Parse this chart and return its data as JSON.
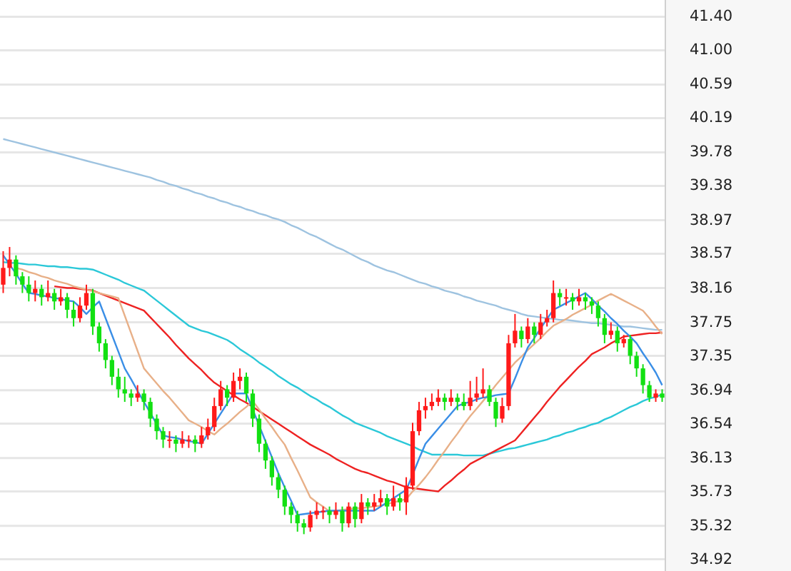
{
  "chart_data": {
    "type": "candlestick",
    "grid": "y",
    "tick_labels": "y",
    "ylim": [
      34.78,
      41.6
    ],
    "yticks": [
      {
        "value": 41.4,
        "label": "41.40"
      },
      {
        "value": 41.0,
        "label": "41.00"
      },
      {
        "value": 40.59,
        "label": "40.59"
      },
      {
        "value": 40.19,
        "label": "40.19"
      },
      {
        "value": 39.78,
        "label": "39.78"
      },
      {
        "value": 39.38,
        "label": "39.38"
      },
      {
        "value": 38.97,
        "label": "38.97"
      },
      {
        "value": 38.57,
        "label": "38.57"
      },
      {
        "value": 38.16,
        "label": "38.16"
      },
      {
        "value": 37.75,
        "label": "37.75"
      },
      {
        "value": 37.35,
        "label": "37.35"
      },
      {
        "value": 36.94,
        "label": "36.94"
      },
      {
        "value": 36.54,
        "label": "36.54"
      },
      {
        "value": 36.13,
        "label": "36.13"
      },
      {
        "value": 35.73,
        "label": "35.73"
      },
      {
        "value": 35.32,
        "label": "35.32"
      },
      {
        "value": 34.92,
        "label": "34.92"
      }
    ],
    "categories": [
      null,
      null,
      null,
      null,
      null,
      null,
      null,
      null,
      null,
      null,
      null,
      null,
      null,
      null,
      null,
      null,
      null,
      null,
      null,
      null,
      null,
      null,
      null,
      null,
      null,
      null,
      null,
      null,
      null,
      null,
      null,
      null,
      null,
      null,
      null,
      null,
      null,
      null,
      null,
      null,
      null,
      null,
      null,
      null,
      null,
      null,
      null,
      null,
      null,
      null,
      null,
      null,
      null,
      null,
      null,
      null,
      null,
      null,
      null,
      null,
      null,
      null,
      null,
      null,
      null,
      null,
      null,
      null,
      null,
      null,
      null,
      null,
      null,
      null,
      null,
      null,
      null,
      null,
      null,
      null,
      null,
      null,
      null,
      null,
      null,
      null,
      null,
      null,
      null,
      null,
      null,
      null,
      null,
      null,
      null,
      null,
      null,
      null,
      null,
      null,
      null,
      null,
      null,
      null
    ],
    "ohlc": [
      [
        38.2,
        38.6,
        38.1,
        38.4
      ],
      [
        38.4,
        38.65,
        38.3,
        38.5
      ],
      [
        38.5,
        38.55,
        38.2,
        38.3
      ],
      [
        38.3,
        38.35,
        38.1,
        38.2
      ],
      [
        38.2,
        38.3,
        38.0,
        38.1
      ],
      [
        38.1,
        38.25,
        38.0,
        38.15
      ],
      [
        38.15,
        38.2,
        37.95,
        38.05
      ],
      [
        38.05,
        38.25,
        38.0,
        38.1
      ],
      [
        38.1,
        38.15,
        37.9,
        38.0
      ],
      [
        38.0,
        38.15,
        37.95,
        38.05
      ],
      [
        38.05,
        38.1,
        37.8,
        37.9
      ],
      [
        37.9,
        38.0,
        37.7,
        37.8
      ],
      [
        37.8,
        38.05,
        37.75,
        37.95
      ],
      [
        37.95,
        38.2,
        37.9,
        38.1
      ],
      [
        38.1,
        38.15,
        37.6,
        37.7
      ],
      [
        37.7,
        37.75,
        37.4,
        37.5
      ],
      [
        37.5,
        37.55,
        37.2,
        37.3
      ],
      [
        37.3,
        37.35,
        37.0,
        37.1
      ],
      [
        37.1,
        37.2,
        36.85,
        36.95
      ],
      [
        36.95,
        37.1,
        36.8,
        36.9
      ],
      [
        36.9,
        36.95,
        36.75,
        36.85
      ],
      [
        36.85,
        37.0,
        36.8,
        36.9
      ],
      [
        36.9,
        36.95,
        36.7,
        36.8
      ],
      [
        36.8,
        36.85,
        36.5,
        36.6
      ],
      [
        36.6,
        36.65,
        36.35,
        36.45
      ],
      [
        36.45,
        36.5,
        36.25,
        36.35
      ],
      [
        36.35,
        36.45,
        36.25,
        36.35
      ],
      [
        36.35,
        36.4,
        36.2,
        36.3
      ],
      [
        36.3,
        36.45,
        36.25,
        36.35
      ],
      [
        36.35,
        36.4,
        36.25,
        36.35
      ],
      [
        36.35,
        36.4,
        36.2,
        36.3
      ],
      [
        36.3,
        36.5,
        36.25,
        36.4
      ],
      [
        36.4,
        36.6,
        36.35,
        36.5
      ],
      [
        36.5,
        36.85,
        36.45,
        36.75
      ],
      [
        36.75,
        37.05,
        36.7,
        36.95
      ],
      [
        36.95,
        37.0,
        36.75,
        36.85
      ],
      [
        36.85,
        37.15,
        36.8,
        37.05
      ],
      [
        37.05,
        37.2,
        36.95,
        37.1
      ],
      [
        37.1,
        37.15,
        36.8,
        36.9
      ],
      [
        36.9,
        36.95,
        36.5,
        36.6
      ],
      [
        36.6,
        36.65,
        36.2,
        36.3
      ],
      [
        36.3,
        36.35,
        36.0,
        36.1
      ],
      [
        36.1,
        36.15,
        35.8,
        35.9
      ],
      [
        35.9,
        35.95,
        35.65,
        35.75
      ],
      [
        35.75,
        35.8,
        35.45,
        35.55
      ],
      [
        35.55,
        35.6,
        35.35,
        35.45
      ],
      [
        35.45,
        35.5,
        35.25,
        35.35
      ],
      [
        35.35,
        35.4,
        35.22,
        35.3
      ],
      [
        35.3,
        35.5,
        35.25,
        35.45
      ],
      [
        35.45,
        35.6,
        35.4,
        35.5
      ],
      [
        35.5,
        35.55,
        35.4,
        35.5
      ],
      [
        35.5,
        35.55,
        35.35,
        35.45
      ],
      [
        35.45,
        35.6,
        35.4,
        35.5
      ],
      [
        35.5,
        35.55,
        35.25,
        35.35
      ],
      [
        35.35,
        35.6,
        35.3,
        35.55
      ],
      [
        35.55,
        35.6,
        35.3,
        35.4
      ],
      [
        35.4,
        35.7,
        35.35,
        35.6
      ],
      [
        35.6,
        35.65,
        35.45,
        35.55
      ],
      [
        35.55,
        35.7,
        35.5,
        35.6
      ],
      [
        35.6,
        35.75,
        35.55,
        35.65
      ],
      [
        35.65,
        35.7,
        35.45,
        35.55
      ],
      [
        35.55,
        35.8,
        35.5,
        35.65
      ],
      [
        35.65,
        35.7,
        35.5,
        35.6
      ],
      [
        35.6,
        35.9,
        35.45,
        35.8
      ],
      [
        35.8,
        36.55,
        35.75,
        36.45
      ],
      [
        36.45,
        36.8,
        36.4,
        36.7
      ],
      [
        36.7,
        36.85,
        36.6,
        36.75
      ],
      [
        36.75,
        36.9,
        36.7,
        36.8
      ],
      [
        36.8,
        36.95,
        36.75,
        36.85
      ],
      [
        36.85,
        36.9,
        36.7,
        36.8
      ],
      [
        36.8,
        36.95,
        36.75,
        36.85
      ],
      [
        36.85,
        36.9,
        36.7,
        36.8
      ],
      [
        36.8,
        36.9,
        36.7,
        36.75
      ],
      [
        36.75,
        37.05,
        36.7,
        36.85
      ],
      [
        36.85,
        37.1,
        36.8,
        36.9
      ],
      [
        36.9,
        37.2,
        36.85,
        36.95
      ],
      [
        36.95,
        37.0,
        36.75,
        36.8
      ],
      [
        36.8,
        36.85,
        36.5,
        36.6
      ],
      [
        36.6,
        36.85,
        36.55,
        36.75
      ],
      [
        36.75,
        37.6,
        36.7,
        37.5
      ],
      [
        37.5,
        37.85,
        37.45,
        37.65
      ],
      [
        37.65,
        37.7,
        37.45,
        37.55
      ],
      [
        37.55,
        37.8,
        37.5,
        37.7
      ],
      [
        37.7,
        37.75,
        37.5,
        37.6
      ],
      [
        37.6,
        37.85,
        37.55,
        37.75
      ],
      [
        37.75,
        37.9,
        37.7,
        37.8
      ],
      [
        37.8,
        38.25,
        37.75,
        38.1
      ],
      [
        38.1,
        38.15,
        37.95,
        38.05
      ],
      [
        38.05,
        38.15,
        37.95,
        38.05
      ],
      [
        38.05,
        38.1,
        37.9,
        38.0
      ],
      [
        38.0,
        38.15,
        37.95,
        38.05
      ],
      [
        38.05,
        38.1,
        37.9,
        38.0
      ],
      [
        38.0,
        38.05,
        37.85,
        37.95
      ],
      [
        37.95,
        38.0,
        37.7,
        37.8
      ],
      [
        37.8,
        37.85,
        37.5,
        37.6
      ],
      [
        37.6,
        37.75,
        37.55,
        37.65
      ],
      [
        37.65,
        37.7,
        37.4,
        37.5
      ],
      [
        37.5,
        37.6,
        37.45,
        37.55
      ],
      [
        37.55,
        37.6,
        37.25,
        37.35
      ],
      [
        37.35,
        37.4,
        37.1,
        37.2
      ],
      [
        37.2,
        37.25,
        36.9,
        37.0
      ],
      [
        37.0,
        37.05,
        36.8,
        36.85
      ],
      [
        36.85,
        36.95,
        36.8,
        36.9
      ],
      [
        36.9,
        36.95,
        36.8,
        36.85
      ]
    ],
    "series": [
      {
        "type": "line",
        "color": "#9ec3e0",
        "values": [
          39.94,
          39.92,
          39.9,
          39.88,
          39.86,
          39.84,
          39.82,
          39.8,
          39.78,
          39.76,
          39.74,
          39.72,
          39.7,
          39.68,
          39.66,
          39.64,
          39.62,
          39.6,
          39.58,
          39.56,
          39.54,
          39.52,
          39.5,
          39.48,
          39.45,
          39.43,
          39.4,
          39.38,
          39.35,
          39.33,
          39.3,
          39.28,
          39.25,
          39.23,
          39.2,
          39.18,
          39.15,
          39.13,
          39.1,
          39.08,
          39.05,
          39.03,
          39.0,
          38.98,
          38.95,
          38.91,
          38.88,
          38.84,
          38.8,
          38.77,
          38.73,
          38.69,
          38.65,
          38.62,
          38.58,
          38.54,
          38.5,
          38.47,
          38.43,
          38.4,
          38.37,
          38.35,
          38.32,
          38.29,
          38.26,
          38.23,
          38.21,
          38.18,
          38.16,
          38.13,
          38.11,
          38.09,
          38.06,
          38.04,
          38.01,
          37.99,
          37.97,
          37.95,
          37.92,
          37.9,
          37.88,
          37.85,
          37.83,
          37.82,
          37.81,
          37.8,
          37.79,
          37.78,
          37.78,
          37.77,
          37.76,
          37.75,
          37.74,
          37.74,
          37.73,
          37.72,
          37.71,
          37.7,
          37.7,
          37.69,
          37.68,
          37.67,
          37.66,
          37.66
        ]
      },
      {
        "type": "line",
        "color": "#2bc8d8",
        "values": [
          38.47,
          38.46,
          38.46,
          38.45,
          38.44,
          38.44,
          38.43,
          38.42,
          38.42,
          38.41,
          38.41,
          38.4,
          38.39,
          38.39,
          38.38,
          38.35,
          38.32,
          38.29,
          38.26,
          38.22,
          38.19,
          38.16,
          38.13,
          38.07,
          38.01,
          37.95,
          37.89,
          37.83,
          37.77,
          37.71,
          37.68,
          37.65,
          37.63,
          37.6,
          37.57,
          37.54,
          37.49,
          37.43,
          37.38,
          37.33,
          37.27,
          37.22,
          37.17,
          37.11,
          37.06,
          37.01,
          36.97,
          36.92,
          36.87,
          36.83,
          36.78,
          36.74,
          36.69,
          36.64,
          36.6,
          36.55,
          36.52,
          36.49,
          36.46,
          36.43,
          36.39,
          36.36,
          36.33,
          36.3,
          36.27,
          36.23,
          36.2,
          36.17,
          36.17,
          36.17,
          36.17,
          36.17,
          36.16,
          36.16,
          36.16,
          36.16,
          36.18,
          36.2,
          36.22,
          36.24,
          36.25,
          36.27,
          36.29,
          36.31,
          36.33,
          36.35,
          36.38,
          36.4,
          36.43,
          36.45,
          36.48,
          36.5,
          36.53,
          36.55,
          36.59,
          36.62,
          36.66,
          36.7,
          36.74,
          36.77,
          36.81,
          36.84,
          36.86,
          36.89
        ]
      },
      {
        "type": "line",
        "color": "#ee2222",
        "values": [
          null,
          null,
          null,
          null,
          null,
          null,
          null,
          null,
          38.18,
          38.17,
          38.16,
          38.16,
          38.15,
          38.14,
          38.13,
          38.1,
          38.07,
          38.04,
          38.01,
          37.98,
          37.95,
          37.92,
          37.89,
          37.81,
          37.73,
          37.65,
          37.57,
          37.48,
          37.4,
          37.32,
          37.25,
          37.18,
          37.1,
          37.03,
          36.98,
          36.93,
          36.88,
          36.83,
          36.79,
          36.74,
          36.69,
          36.64,
          36.59,
          36.54,
          36.49,
          36.44,
          36.39,
          36.34,
          36.29,
          36.25,
          36.21,
          36.17,
          36.12,
          36.08,
          36.04,
          36.0,
          35.97,
          35.95,
          35.92,
          35.89,
          35.86,
          35.84,
          35.81,
          35.78,
          35.77,
          35.76,
          35.75,
          35.74,
          35.73,
          35.8,
          35.86,
          35.93,
          35.99,
          36.06,
          36.1,
          36.14,
          36.18,
          36.22,
          36.26,
          36.3,
          36.34,
          36.43,
          36.52,
          36.61,
          36.7,
          36.8,
          36.89,
          36.98,
          37.06,
          37.14,
          37.22,
          37.29,
          37.37,
          37.41,
          37.45,
          37.5,
          37.54,
          37.58,
          37.59,
          37.6,
          37.61,
          37.62,
          37.62,
          37.63
        ]
      },
      {
        "type": "line",
        "color": "#e8b088",
        "values": [
          null,
          null,
          38.4,
          38.38,
          38.35,
          38.33,
          38.3,
          38.28,
          38.25,
          38.23,
          38.21,
          38.18,
          38.16,
          38.14,
          38.12,
          38.1,
          38.08,
          38.06,
          38.04,
          37.83,
          37.62,
          37.41,
          37.2,
          37.11,
          37.02,
          36.93,
          36.85,
          36.76,
          36.67,
          36.58,
          36.54,
          36.5,
          36.45,
          36.41,
          36.48,
          36.54,
          36.61,
          36.68,
          36.74,
          36.81,
          36.71,
          36.6,
          36.5,
          36.39,
          36.29,
          36.13,
          35.98,
          35.82,
          35.66,
          35.6,
          35.55,
          35.49,
          35.5,
          35.51,
          35.52,
          35.53,
          35.53,
          35.54,
          35.55,
          35.56,
          35.58,
          35.6,
          35.62,
          35.64,
          35.73,
          35.81,
          35.9,
          36.0,
          36.11,
          36.21,
          36.32,
          36.42,
          36.53,
          36.63,
          36.72,
          36.81,
          36.9,
          37.0,
          37.09,
          37.18,
          37.27,
          37.34,
          37.42,
          37.49,
          37.56,
          37.64,
          37.71,
          37.75,
          37.79,
          37.84,
          37.88,
          37.92,
          37.96,
          38.01,
          38.05,
          38.09,
          38.05,
          38.01,
          37.97,
          37.93,
          37.89,
          37.8,
          37.7,
          37.61
        ]
      },
      {
        "type": "line",
        "color": "#3a8ee6",
        "values": [
          38.55,
          38.44,
          38.33,
          38.21,
          38.1,
          38.09,
          38.07,
          38.06,
          38.04,
          38.03,
          38.01,
          38.0,
          37.93,
          37.85,
          37.93,
          38.0,
          37.8,
          37.6,
          37.4,
          37.2,
          37.07,
          36.93,
          36.8,
          36.67,
          36.53,
          36.4,
          36.38,
          36.37,
          36.35,
          36.33,
          36.32,
          36.3,
          36.42,
          36.54,
          36.66,
          36.78,
          36.9,
          36.9,
          36.9,
          36.71,
          36.52,
          36.33,
          36.14,
          35.95,
          35.78,
          35.62,
          35.45,
          35.46,
          35.47,
          35.48,
          35.49,
          35.5,
          35.5,
          35.5,
          35.5,
          35.5,
          35.5,
          35.5,
          35.5,
          35.55,
          35.6,
          35.65,
          35.7,
          35.75,
          35.93,
          36.12,
          36.3,
          36.39,
          36.48,
          36.57,
          36.66,
          36.75,
          36.78,
          36.8,
          36.83,
          36.85,
          36.86,
          36.88,
          36.89,
          36.9,
          37.08,
          37.27,
          37.45,
          37.56,
          37.68,
          37.79,
          37.9,
          37.94,
          37.98,
          38.02,
          38.06,
          38.1,
          38.03,
          37.95,
          37.88,
          37.8,
          37.73,
          37.65,
          37.58,
          37.5,
          37.38,
          37.27,
          37.15,
          37.0
        ]
      }
    ]
  }
}
